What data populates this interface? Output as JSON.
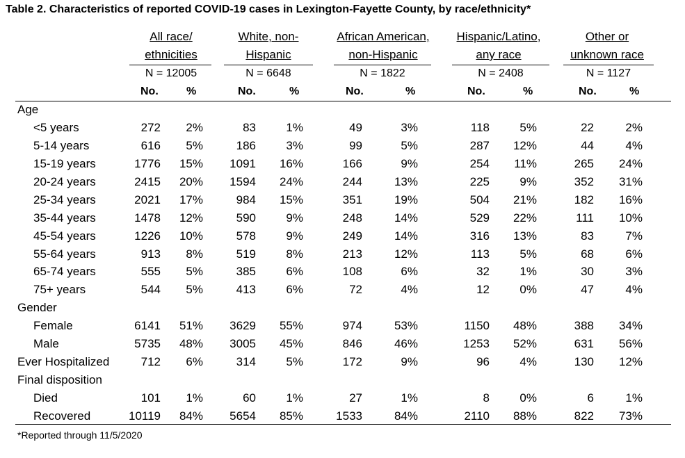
{
  "title": "Table 2. Characteristics of reported COVID-19 cases in Lexington-Fayette County, by race/ethnicity*",
  "groups": [
    {
      "line1": "All race/",
      "line2": "ethnicities",
      "n": "N =  12005"
    },
    {
      "line1": "White, non-",
      "line2": "Hispanic",
      "n": "N =  6648"
    },
    {
      "line1": "African American,",
      "line2": "non-Hispanic",
      "n": "N = 1822"
    },
    {
      "line1": "Hispanic/Latino,",
      "line2": "any race",
      "n": "N =  2408"
    },
    {
      "line1": "Other or",
      "line2": "unknown race",
      "n": "N =  1127"
    }
  ],
  "subheaders": {
    "no": "No.",
    "pct": "%"
  },
  "sections": {
    "age": "Age",
    "gender": "Gender",
    "final": "Final disposition"
  },
  "rows": [
    {
      "label": "<5 years",
      "values": [
        "272",
        "2%",
        "83",
        "1%",
        "49",
        "3%",
        "118",
        "5%",
        "22",
        "2%"
      ]
    },
    {
      "label": "5-14 years",
      "values": [
        "616",
        "5%",
        "186",
        "3%",
        "99",
        "5%",
        "287",
        "12%",
        "44",
        "4%"
      ]
    },
    {
      "label": "15-19 years",
      "values": [
        "1776",
        "15%",
        "1091",
        "16%",
        "166",
        "9%",
        "254",
        "11%",
        "265",
        "24%"
      ]
    },
    {
      "label": "20-24 years",
      "values": [
        "2415",
        "20%",
        "1594",
        "24%",
        "244",
        "13%",
        "225",
        "9%",
        "352",
        "31%"
      ]
    },
    {
      "label": "25-34 years",
      "values": [
        "2021",
        "17%",
        "984",
        "15%",
        "351",
        "19%",
        "504",
        "21%",
        "182",
        "16%"
      ]
    },
    {
      "label": "35-44 years",
      "values": [
        "1478",
        "12%",
        "590",
        "9%",
        "248",
        "14%",
        "529",
        "22%",
        "111",
        "10%"
      ]
    },
    {
      "label": "45-54 years",
      "values": [
        "1226",
        "10%",
        "578",
        "9%",
        "249",
        "14%",
        "316",
        "13%",
        "83",
        "7%"
      ]
    },
    {
      "label": "55-64 years",
      "values": [
        "913",
        "8%",
        "519",
        "8%",
        "213",
        "12%",
        "113",
        "5%",
        "68",
        "6%"
      ]
    },
    {
      "label": "65-74 years",
      "values": [
        "555",
        "5%",
        "385",
        "6%",
        "108",
        "6%",
        "32",
        "1%",
        "30",
        "3%"
      ]
    },
    {
      "label": "75+ years",
      "values": [
        "544",
        "5%",
        "413",
        "6%",
        "72",
        "4%",
        "12",
        "0%",
        "47",
        "4%"
      ]
    },
    {
      "label": "Female",
      "values": [
        "6141",
        "51%",
        "3629",
        "55%",
        "974",
        "53%",
        "1150",
        "48%",
        "388",
        "34%"
      ]
    },
    {
      "label": "Male",
      "values": [
        "5735",
        "48%",
        "3005",
        "45%",
        "846",
        "46%",
        "1253",
        "52%",
        "631",
        "56%"
      ]
    },
    {
      "label": "Ever Hospitalized",
      "values": [
        "712",
        "6%",
        "314",
        "5%",
        "172",
        "9%",
        "96",
        "4%",
        "130",
        "12%"
      ]
    },
    {
      "label": "Died",
      "values": [
        "101",
        "1%",
        "60",
        "1%",
        "27",
        "1%",
        "8",
        "0%",
        "6",
        "1%"
      ]
    },
    {
      "label": "Recovered",
      "values": [
        "10119",
        "84%",
        "5654",
        "85%",
        "1533",
        "84%",
        "2110",
        "88%",
        "822",
        "73%"
      ]
    }
  ],
  "footnote": "*Reported through 11/5/2020"
}
